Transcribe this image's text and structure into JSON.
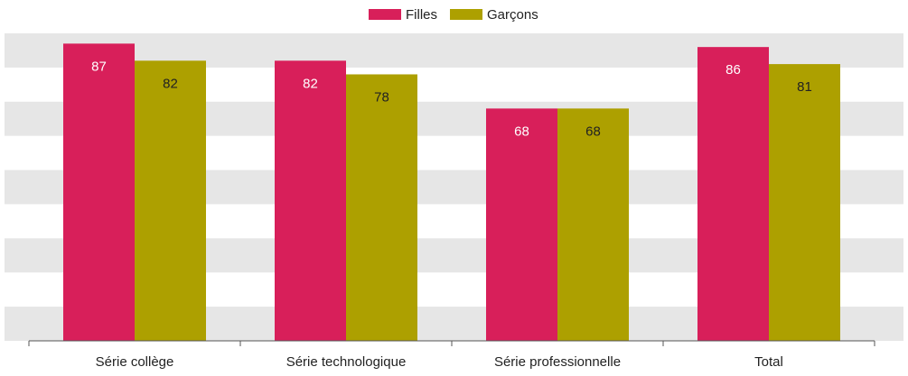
{
  "chart_data": {
    "type": "bar",
    "categories": [
      "Série collège",
      "Série technologique",
      "Série professionnelle",
      "Total"
    ],
    "series": [
      {
        "name": "Filles",
        "color": "#d81f5a",
        "values": [
          87,
          82,
          68,
          86
        ]
      },
      {
        "name": "Garçons",
        "color": "#ada000",
        "values": [
          82,
          78,
          68,
          81
        ]
      }
    ],
    "ylim": [
      0,
      90
    ],
    "yticks": [
      0,
      10,
      20,
      30,
      40,
      50,
      60,
      70,
      80,
      90
    ],
    "grid": "bands",
    "legend": "top"
  }
}
